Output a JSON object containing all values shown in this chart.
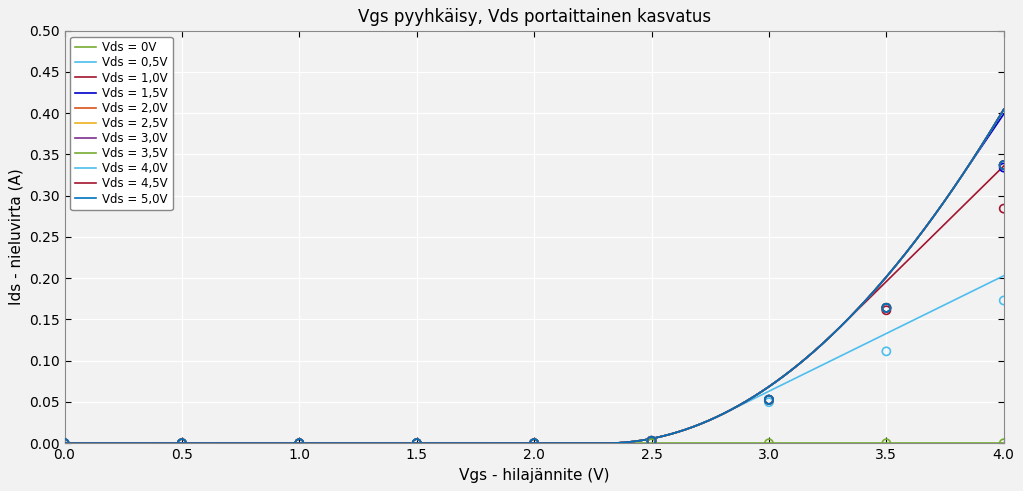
{
  "title": "Vgs pyyhkäisy, Vds portaittainen kasvatus",
  "xlabel": "Vgs - hilajännite (V)",
  "ylabel": "Ids - nieluvirta (A)",
  "xlim": [
    0,
    4
  ],
  "ylim": [
    0,
    0.5
  ],
  "xticks": [
    0,
    0.5,
    1.0,
    1.5,
    2.0,
    2.5,
    3.0,
    3.5,
    4.0
  ],
  "yticks": [
    0,
    0.05,
    0.1,
    0.15,
    0.2,
    0.25,
    0.3,
    0.35,
    0.4,
    0.45,
    0.5
  ],
  "vth": 2.3,
  "K": 0.28,
  "lam": 0.0,
  "vds_values": [
    0.0,
    0.5,
    1.0,
    1.5,
    2.0,
    2.5,
    3.0,
    3.5,
    4.0,
    4.5,
    5.0
  ],
  "legend_labels": [
    "Vds = 0V",
    "Vds = 0,5V",
    "Vds = 1,0V",
    "Vds = 1,5V",
    "Vds = 2,0V",
    "Vds = 2,5V",
    "Vds = 3,0V",
    "Vds = 3,5V",
    "Vds = 4,0V",
    "Vds = 4,5V",
    "Vds = 5,0V"
  ],
  "line_colors": [
    "#77ac30",
    "#4dbeee",
    "#a2142f",
    "#0000cd",
    "#d95319",
    "#edb120",
    "#7e2f8e",
    "#77ac30",
    "#4dbeee",
    "#a2142f",
    "#0072bd"
  ],
  "meas_vgs": [
    0.0,
    0.5,
    1.0,
    1.5,
    2.0,
    2.5,
    3.0,
    3.5,
    4.0
  ],
  "meas_colors": [
    "#77ac30",
    "#4dbeee",
    "#a2142f",
    "#0000cd",
    "#d95319",
    "#edb120",
    "#7e2f8e",
    "#77ac30",
    "#4dbeee",
    "#a2142f",
    "#0072bd"
  ],
  "background_color": "#f2f2f2"
}
